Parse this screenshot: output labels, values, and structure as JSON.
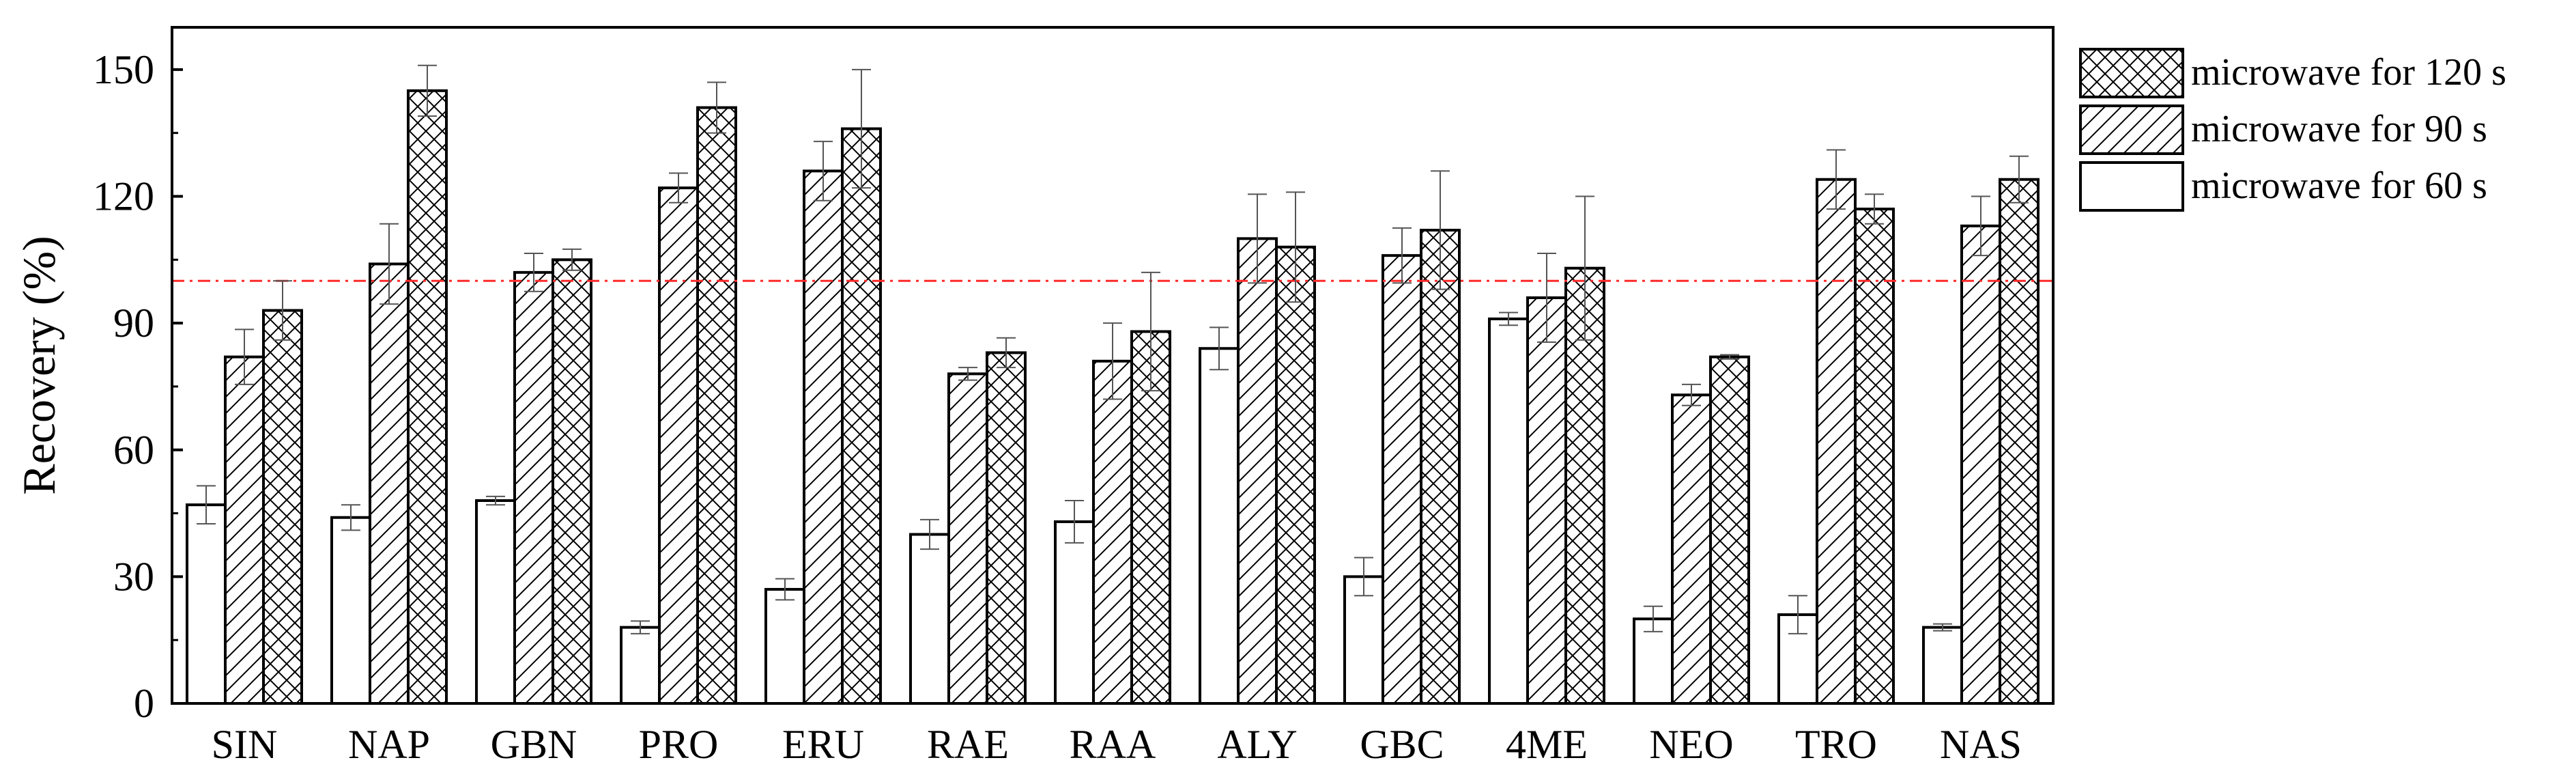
{
  "chart_data": {
    "type": "bar",
    "title": "",
    "xlabel": "",
    "ylabel": "Recovery (%)",
    "ylim": [
      0,
      160
    ],
    "yticks": [
      0,
      30,
      60,
      90,
      120,
      150
    ],
    "grid": false,
    "legend_position": "right",
    "categories": [
      "SIN",
      "NAP",
      "GBN",
      "PRO",
      "ERU",
      "RAE",
      "RAA",
      "ALY",
      "GBC",
      "4ME",
      "NEO",
      "TRO",
      "NAS"
    ],
    "series": [
      {
        "name": "microwave for 60 s",
        "pattern": "none",
        "values": [
          47,
          44,
          48,
          18,
          27,
          40,
          43,
          84,
          30,
          91,
          20,
          21,
          18
        ],
        "errors": [
          4.5,
          3,
          1,
          1.5,
          2.5,
          3.5,
          5,
          5,
          4.5,
          1.5,
          3,
          4.5,
          0.8
        ]
      },
      {
        "name": "microwave for 90 s",
        "pattern": "diagonal",
        "values": [
          82,
          104,
          102,
          122,
          126,
          78,
          81,
          110,
          106,
          96,
          73,
          124,
          113
        ],
        "errors": [
          6.5,
          9.5,
          4.5,
          3.5,
          7,
          1.5,
          9,
          10.5,
          6.5,
          10.5,
          2.5,
          7,
          7
        ]
      },
      {
        "name": "microwave for 120 s",
        "pattern": "crosshatch",
        "values": [
          93,
          145,
          105,
          141,
          136,
          83,
          88,
          108,
          112,
          103,
          82,
          117,
          124
        ],
        "errors": [
          7,
          6,
          2.5,
          6,
          14,
          3.5,
          14,
          13,
          14,
          17,
          0.5,
          3.5,
          5.5
        ]
      }
    ],
    "reference_line": {
      "y": 100,
      "color": "#ff2a2a",
      "style": "dashed"
    }
  }
}
